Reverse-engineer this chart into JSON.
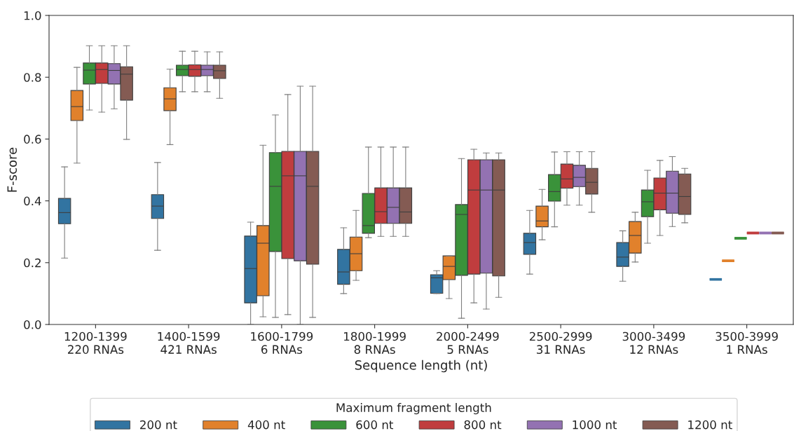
{
  "chart_data": {
    "type": "box",
    "xlabel": "Sequence length (nt)",
    "ylabel": "F-score",
    "legend_title": "Maximum fragment length",
    "legend": "bottom",
    "grid": false,
    "categories": [
      "1200-1399\n220 RNAs",
      "1400-1599\n421 RNAs",
      "1600-1799\n6 RNAs",
      "1800-1999\n8 RNAs",
      "2000-2499\n5 RNAs",
      "2500-2999\n31 RNAs",
      "3000-3499\n12 RNAs",
      "3500-3999\n1 RNAs"
    ],
    "ylim": [
      0,
      1
    ],
    "yticks": [
      {
        "value": 0,
        "label": "0.0"
      },
      {
        "value": 0.2,
        "label": "0.2"
      },
      {
        "value": 0.4,
        "label": "0.4"
      },
      {
        "value": 0.6,
        "label": "0.6"
      },
      {
        "value": 0.8,
        "label": "0.8"
      },
      {
        "value": 1,
        "label": "1.0"
      }
    ],
    "series": [
      {
        "name": "200 nt",
        "color": "#3274a1",
        "boxes": [
          {
            "low": 0.215,
            "q1": 0.326,
            "median": 0.362,
            "q3": 0.408,
            "high": 0.51
          },
          {
            "low": 0.24,
            "q1": 0.343,
            "median": 0.383,
            "q3": 0.42,
            "high": 0.524
          },
          {
            "low": 0.0,
            "q1": 0.07,
            "median": 0.181,
            "q3": 0.286,
            "high": 0.331
          },
          {
            "low": 0.1,
            "q1": 0.13,
            "median": 0.17,
            "q3": 0.243,
            "high": 0.313
          },
          {
            "low": 0.1,
            "q1": 0.101,
            "median": 0.151,
            "q3": 0.161,
            "high": 0.174
          },
          {
            "low": 0.163,
            "q1": 0.227,
            "median": 0.265,
            "q3": 0.295,
            "high": 0.369
          },
          {
            "low": 0.14,
            "q1": 0.188,
            "median": 0.218,
            "q3": 0.265,
            "high": 0.303
          },
          {
            "low": 0.146,
            "q1": 0.146,
            "median": 0.146,
            "q3": 0.146,
            "high": 0.146
          }
        ]
      },
      {
        "name": "400 nt",
        "color": "#e1812c",
        "boxes": [
          {
            "low": 0.522,
            "q1": 0.66,
            "median": 0.705,
            "q3": 0.757,
            "high": 0.832
          },
          {
            "low": 0.582,
            "q1": 0.692,
            "median": 0.73,
            "q3": 0.766,
            "high": 0.826
          },
          {
            "low": 0.025,
            "q1": 0.093,
            "median": 0.263,
            "q3": 0.32,
            "high": 0.58
          },
          {
            "low": 0.143,
            "q1": 0.174,
            "median": 0.229,
            "q3": 0.283,
            "high": 0.369
          },
          {
            "low": 0.084,
            "q1": 0.145,
            "median": 0.188,
            "q3": 0.222,
            "high": 0.222
          },
          {
            "low": 0.274,
            "q1": 0.316,
            "median": 0.335,
            "q3": 0.383,
            "high": 0.437
          },
          {
            "low": 0.202,
            "q1": 0.231,
            "median": 0.288,
            "q3": 0.333,
            "high": 0.363
          },
          {
            "low": 0.206,
            "q1": 0.206,
            "median": 0.206,
            "q3": 0.206,
            "high": 0.206
          }
        ]
      },
      {
        "name": "600 nt",
        "color": "#3a923a",
        "boxes": [
          {
            "low": 0.694,
            "q1": 0.778,
            "median": 0.823,
            "q3": 0.846,
            "high": 0.902
          },
          {
            "low": 0.753,
            "q1": 0.805,
            "median": 0.825,
            "q3": 0.839,
            "high": 0.884
          },
          {
            "low": 0.023,
            "q1": 0.236,
            "median": 0.447,
            "q3": 0.556,
            "high": 0.678
          },
          {
            "low": 0.281,
            "q1": 0.295,
            "median": 0.32,
            "q3": 0.424,
            "high": 0.574
          },
          {
            "low": 0.02,
            "q1": 0.159,
            "median": 0.356,
            "q3": 0.388,
            "high": 0.537
          },
          {
            "low": 0.316,
            "q1": 0.399,
            "median": 0.43,
            "q3": 0.485,
            "high": 0.558
          },
          {
            "low": 0.263,
            "q1": 0.349,
            "median": 0.397,
            "q3": 0.435,
            "high": 0.499
          },
          {
            "low": 0.279,
            "q1": 0.279,
            "median": 0.279,
            "q3": 0.279,
            "high": 0.279
          }
        ]
      },
      {
        "name": "800 nt",
        "color": "#c03d3e",
        "boxes": [
          {
            "low": 0.687,
            "q1": 0.78,
            "median": 0.825,
            "q3": 0.846,
            "high": 0.902
          },
          {
            "low": 0.753,
            "q1": 0.803,
            "median": 0.825,
            "q3": 0.84,
            "high": 0.884
          },
          {
            "low": 0.032,
            "q1": 0.213,
            "median": 0.481,
            "q3": 0.56,
            "high": 0.744
          },
          {
            "low": 0.285,
            "q1": 0.327,
            "median": 0.365,
            "q3": 0.442,
            "high": 0.574
          },
          {
            "low": 0.07,
            "q1": 0.163,
            "median": 0.435,
            "q3": 0.533,
            "high": 0.567
          },
          {
            "low": 0.386,
            "q1": 0.441,
            "median": 0.471,
            "q3": 0.519,
            "high": 0.559
          },
          {
            "low": 0.288,
            "q1": 0.371,
            "median": 0.425,
            "q3": 0.474,
            "high": 0.531
          },
          {
            "low": 0.296,
            "q1": 0.296,
            "median": 0.296,
            "q3": 0.296,
            "high": 0.296
          }
        ]
      },
      {
        "name": "1000 nt",
        "color": "#9372b2",
        "boxes": [
          {
            "low": 0.698,
            "q1": 0.778,
            "median": 0.822,
            "q3": 0.844,
            "high": 0.902
          },
          {
            "low": 0.753,
            "q1": 0.805,
            "median": 0.825,
            "q3": 0.839,
            "high": 0.882
          },
          {
            "low": 0.0,
            "q1": 0.206,
            "median": 0.481,
            "q3": 0.56,
            "high": 0.771
          },
          {
            "low": 0.285,
            "q1": 0.327,
            "median": 0.379,
            "q3": 0.442,
            "high": 0.574
          },
          {
            "low": 0.05,
            "q1": 0.166,
            "median": 0.435,
            "q3": 0.533,
            "high": 0.555
          },
          {
            "low": 0.386,
            "q1": 0.446,
            "median": 0.476,
            "q3": 0.515,
            "high": 0.559
          },
          {
            "low": 0.317,
            "q1": 0.36,
            "median": 0.425,
            "q3": 0.496,
            "high": 0.543
          },
          {
            "low": 0.296,
            "q1": 0.296,
            "median": 0.296,
            "q3": 0.296,
            "high": 0.296
          }
        ]
      },
      {
        "name": "1200 nt",
        "color": "#845b53",
        "boxes": [
          {
            "low": 0.599,
            "q1": 0.726,
            "median": 0.81,
            "q3": 0.834,
            "high": 0.902
          },
          {
            "low": 0.732,
            "q1": 0.796,
            "median": 0.821,
            "q3": 0.839,
            "high": 0.882
          },
          {
            "low": 0.023,
            "q1": 0.195,
            "median": 0.447,
            "q3": 0.56,
            "high": 0.771
          },
          {
            "low": 0.285,
            "q1": 0.327,
            "median": 0.364,
            "q3": 0.442,
            "high": 0.574
          },
          {
            "low": 0.088,
            "q1": 0.157,
            "median": 0.435,
            "q3": 0.533,
            "high": 0.555
          },
          {
            "low": 0.363,
            "q1": 0.422,
            "median": 0.46,
            "q3": 0.505,
            "high": 0.559
          },
          {
            "low": 0.329,
            "q1": 0.356,
            "median": 0.414,
            "q3": 0.487,
            "high": 0.505
          },
          {
            "low": 0.296,
            "q1": 0.296,
            "median": 0.296,
            "q3": 0.296,
            "high": 0.296
          }
        ]
      }
    ]
  }
}
